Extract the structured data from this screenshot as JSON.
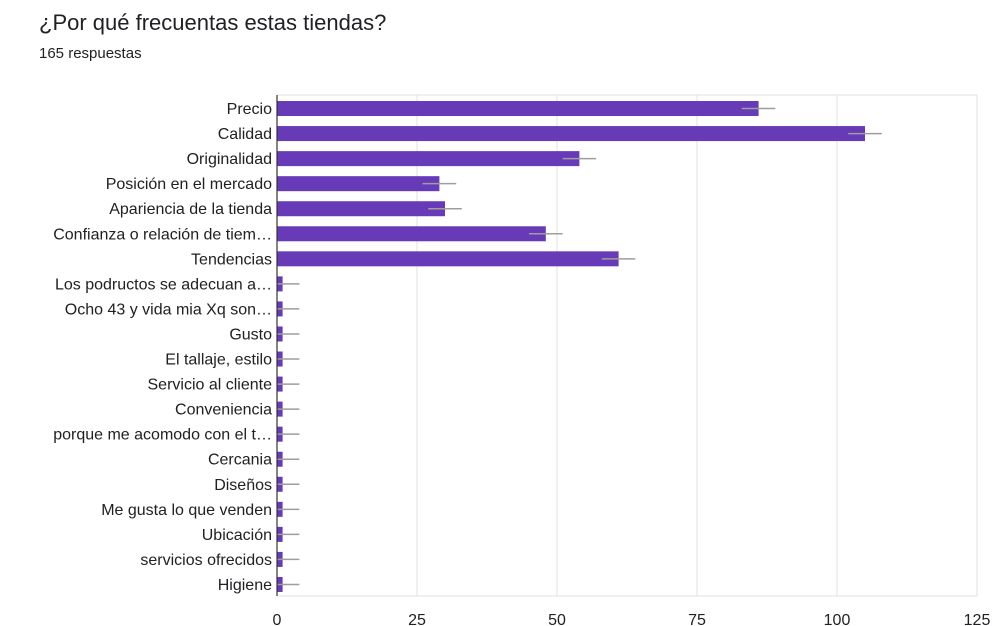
{
  "header": {
    "title": "¿Por qué frecuentas estas tiendas?",
    "responses": "165 respuestas"
  },
  "colors": {
    "bar": "#673ab7",
    "grid": "#e0e0e0",
    "axis": "#333333",
    "error_bar": "#9e9e9e",
    "text": "#202124"
  },
  "chart_data": {
    "type": "bar",
    "orientation": "horizontal",
    "title": "¿Por qué frecuentas estas tiendas?",
    "subtitle": "165 respuestas",
    "xlabel": "",
    "ylabel": "",
    "xlim": [
      0,
      125
    ],
    "x_ticks": [
      0,
      25,
      50,
      75,
      100,
      125
    ],
    "grid": true,
    "error_bars": true,
    "error_margin": 3,
    "categories": [
      "Precio",
      "Calidad",
      "Originalidad",
      "Posición en el mercado",
      "Apariencia de la tienda",
      "Confianza o relación de tiem…",
      "Tendencias",
      "Los podructos se adecuan a…",
      "Ocho 43 y vida mia Xq son…",
      "Gusto",
      "El tallaje, estilo",
      "Servicio al cliente",
      "Conveniencia",
      "porque me acomodo con el t…",
      "Cercania",
      "Diseños",
      "Me gusta lo que venden",
      "Ubicación",
      "servicios ofrecidos",
      "Higiene"
    ],
    "values": [
      86,
      105,
      54,
      29,
      30,
      48,
      61,
      1,
      1,
      1,
      1,
      1,
      1,
      1,
      1,
      1,
      1,
      1,
      1,
      1
    ]
  }
}
